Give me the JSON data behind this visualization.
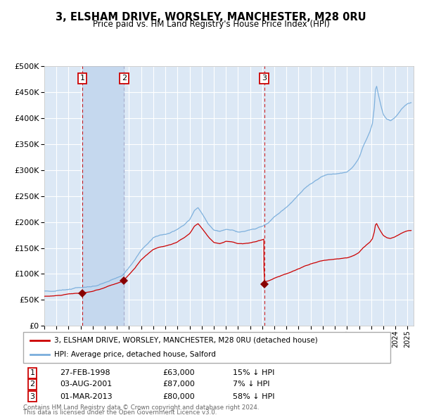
{
  "title": "3, ELSHAM DRIVE, WORSLEY, MANCHESTER, M28 0RU",
  "subtitle": "Price paid vs. HM Land Registry's House Price Index (HPI)",
  "background_color": "#ffffff",
  "plot_bg_color": "#dce8f5",
  "grid_color": "#ffffff",
  "transactions": [
    {
      "id": 1,
      "date_num": 1998.15,
      "price": 63000,
      "label": "27-FEB-1998",
      "price_str": "£63,000",
      "hpi_diff": "15% ↓ HPI"
    },
    {
      "id": 2,
      "date_num": 2001.59,
      "price": 87000,
      "label": "03-AUG-2001",
      "price_str": "£87,000",
      "hpi_diff": "7% ↓ HPI"
    },
    {
      "id": 3,
      "date_num": 2013.17,
      "price": 80000,
      "label": "01-MAR-2013",
      "price_str": "£80,000",
      "hpi_diff": "58% ↓ HPI"
    }
  ],
  "legend_house_label": "3, ELSHAM DRIVE, WORSLEY, MANCHESTER, M28 0RU (detached house)",
  "legend_hpi_label": "HPI: Average price, detached house, Salford",
  "footnote1": "Contains HM Land Registry data © Crown copyright and database right 2024.",
  "footnote2": "This data is licensed under the Open Government Licence v3.0.",
  "ylim": [
    0,
    500000
  ],
  "yticks": [
    0,
    50000,
    100000,
    150000,
    200000,
    250000,
    300000,
    350000,
    400000,
    450000,
    500000
  ],
  "xlim_start": 1995.0,
  "xlim_end": 2025.5,
  "red_line_color": "#cc0000",
  "blue_line_color": "#7aaedc",
  "dot_color": "#880000",
  "vline_color_red": "#cc0000",
  "vline_color_blue": "#aaaacc",
  "shade_color": "#c8daf0"
}
